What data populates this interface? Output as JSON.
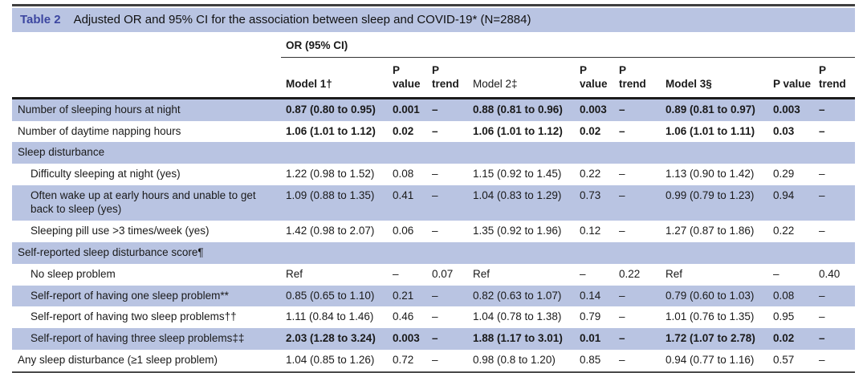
{
  "table": {
    "label": "Table 2",
    "title": "Adjusted OR and 95% CI for the association between sleep and COVID-19* (N=2884)",
    "group_header": "OR (95% CI)",
    "columns": [
      "Model 1†",
      "P\nvalue",
      "P\ntrend",
      "Model 2‡",
      "P\nvalue",
      "P\ntrend",
      "Model 3§",
      "P value",
      "P\ntrend"
    ],
    "rows": [
      {
        "label": "Number of sleeping hours at night",
        "type": "data",
        "indent": false,
        "bold": true,
        "shade": true,
        "values": [
          "0.87 (0.80 to 0.95)",
          "0.001",
          "–",
          "0.88 (0.81 to 0.96)",
          "0.003",
          "–",
          "0.89 (0.81 to 0.97)",
          "0.003",
          "–"
        ]
      },
      {
        "label": "Number of daytime napping hours",
        "type": "data",
        "indent": false,
        "bold": true,
        "shade": false,
        "values": [
          "1.06 (1.01 to 1.12)",
          "0.02",
          "–",
          "1.06 (1.01 to 1.12)",
          "0.02",
          "–",
          "1.06 (1.01 to 1.11)",
          "0.03",
          "–"
        ]
      },
      {
        "label": "Sleep disturbance",
        "type": "section",
        "indent": false,
        "bold": false,
        "shade": true,
        "values": []
      },
      {
        "label": "Difficulty sleeping at night (yes)",
        "type": "data",
        "indent": true,
        "bold": false,
        "shade": false,
        "values": [
          "1.22 (0.98 to 1.52)",
          "0.08",
          "–",
          "1.15 (0.92 to 1.45)",
          "0.22",
          "–",
          "1.13 (0.90 to 1.42)",
          "0.29",
          "–"
        ]
      },
      {
        "label": "Often wake up at early hours and unable to get back to sleep (yes)",
        "type": "data",
        "indent": true,
        "bold": false,
        "shade": true,
        "values": [
          "1.09 (0.88 to 1.35)",
          "0.41",
          "–",
          "1.04 (0.83 to 1.29)",
          "0.73",
          "–",
          "0.99 (0.79 to 1.23)",
          "0.94",
          "–"
        ]
      },
      {
        "label": "Sleeping pill use >3 times/week (yes)",
        "type": "data",
        "indent": true,
        "bold": false,
        "shade": false,
        "values": [
          "1.42 (0.98 to 2.07)",
          "0.06",
          "–",
          "1.35 (0.92 to 1.96)",
          "0.12",
          "–",
          "1.27 (0.87 to 1.86)",
          "0.22",
          "–"
        ]
      },
      {
        "label": "Self-reported sleep disturbance score¶",
        "type": "section",
        "indent": false,
        "bold": false,
        "shade": true,
        "values": []
      },
      {
        "label": "No sleep problem",
        "type": "data",
        "indent": true,
        "bold": false,
        "shade": false,
        "values": [
          "Ref",
          "–",
          "0.07",
          "Ref",
          "–",
          "0.22",
          "Ref",
          "–",
          "0.40"
        ]
      },
      {
        "label": "Self-report of having one sleep problem**",
        "type": "data",
        "indent": true,
        "bold": false,
        "shade": true,
        "values": [
          "0.85 (0.65 to 1.10)",
          "0.21",
          "–",
          "0.82 (0.63 to 1.07)",
          "0.14",
          "–",
          "0.79 (0.60 to 1.03)",
          "0.08",
          "–"
        ]
      },
      {
        "label": "Self-report of having two sleep problems††",
        "type": "data",
        "indent": true,
        "bold": false,
        "shade": false,
        "values": [
          "1.11 (0.84 to 1.46)",
          "0.46",
          "–",
          "1.04 (0.78 to 1.38)",
          "0.79",
          "–",
          "1.01 (0.76 to 1.35)",
          "0.95",
          "–"
        ]
      },
      {
        "label": "Self-report of having three sleep problems‡‡",
        "type": "data",
        "indent": true,
        "bold": true,
        "shade": true,
        "values": [
          "2.03 (1.28 to 3.24)",
          "0.003",
          "–",
          "1.88 (1.17 to 3.01)",
          "0.01",
          "–",
          "1.72 (1.07 to 2.78)",
          "0.02",
          "–"
        ]
      },
      {
        "label": "Any sleep disturbance (≥1 sleep problem)",
        "type": "data",
        "indent": false,
        "bold": false,
        "shade": false,
        "values": [
          "1.04 (0.85 to 1.26)",
          "0.72",
          "–",
          "0.98 (0.8 to 1.20)",
          "0.85",
          "–",
          "0.94 (0.77 to 1.16)",
          "0.57",
          "–"
        ]
      }
    ]
  },
  "colors": {
    "stripe": "#b9c4e2",
    "accent": "#3c46a0",
    "text": "#1a1a1a"
  }
}
